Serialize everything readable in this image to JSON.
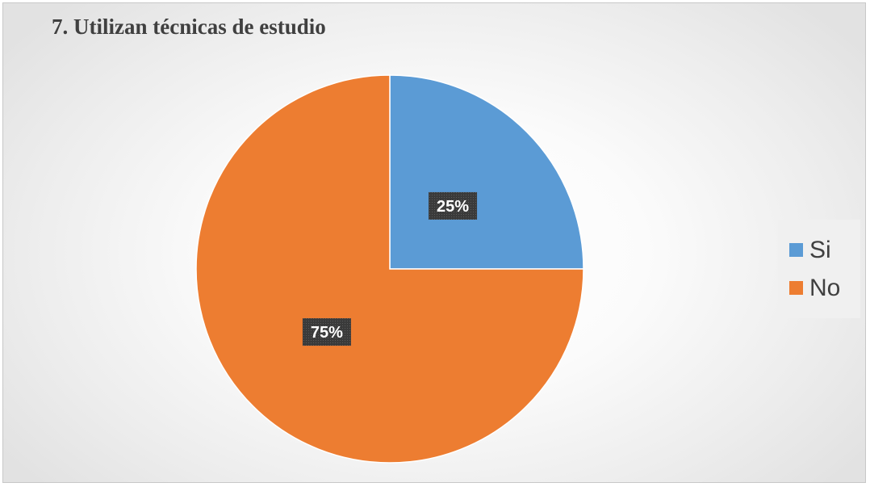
{
  "chart_data": {
    "type": "pie",
    "title": "7. Utilizan técnicas de estudio",
    "slices": [
      {
        "label": "Si",
        "value": 25,
        "data_label": "25%",
        "color": "#5b9bd5"
      },
      {
        "label": "No",
        "value": 75,
        "data_label": "75%",
        "color": "#ed7d31"
      }
    ],
    "start_angle": "12 o'clock, clockwise",
    "legend_position": "right",
    "data_label_style": {
      "background": "#404040",
      "text_color": "#ffffff"
    }
  }
}
